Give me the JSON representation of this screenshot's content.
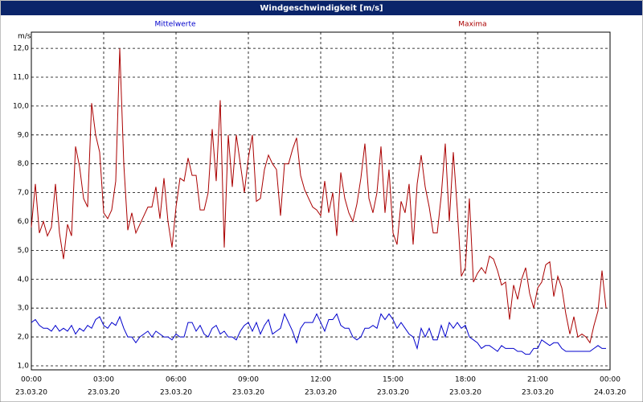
{
  "chart_data": {
    "type": "line",
    "title": "Windgeschwindigkeit [m/s]",
    "y_unit": "m/s",
    "x": [
      0,
      10,
      20,
      30,
      40,
      50,
      60,
      70,
      80,
      90,
      100,
      110,
      120,
      130,
      140,
      150,
      160,
      170,
      180,
      190,
      200,
      210,
      220,
      230,
      240,
      250,
      260,
      270,
      280,
      290,
      300,
      310,
      320,
      330,
      340,
      350,
      360,
      370,
      380,
      390,
      400,
      410,
      420,
      430,
      440,
      450,
      460,
      470,
      480,
      490,
      500,
      510,
      520,
      530,
      540,
      550,
      560,
      570,
      580,
      590,
      600,
      610,
      620,
      630,
      640,
      650,
      660,
      670,
      680,
      690,
      700,
      710,
      720,
      730,
      740,
      750,
      760,
      770,
      780,
      790,
      800,
      810,
      820,
      830,
      840,
      850,
      860,
      870,
      880,
      890,
      900,
      910,
      920,
      930,
      940,
      950,
      960,
      970,
      980,
      990,
      1000,
      1010,
      1020,
      1030,
      1040,
      1050,
      1060,
      1070,
      1080,
      1090,
      1100,
      1110,
      1120,
      1130,
      1140,
      1150,
      1160,
      1170,
      1180,
      1190,
      1200,
      1210,
      1220,
      1230,
      1240,
      1250,
      1260,
      1270,
      1280,
      1290,
      1300,
      1310,
      1320,
      1330,
      1340,
      1350,
      1360,
      1370,
      1380,
      1390,
      1400,
      1410,
      1420,
      1430
    ],
    "series": [
      {
        "name": "Mittelwerte",
        "color": "#0000cc",
        "values": [
          2.5,
          2.6,
          2.4,
          2.3,
          2.3,
          2.2,
          2.4,
          2.2,
          2.3,
          2.2,
          2.4,
          2.1,
          2.3,
          2.2,
          2.4,
          2.3,
          2.6,
          2.7,
          2.4,
          2.3,
          2.5,
          2.4,
          2.7,
          2.3,
          2.0,
          2.0,
          1.8,
          2.0,
          2.1,
          2.2,
          2.0,
          2.2,
          2.1,
          2.0,
          2.0,
          1.9,
          2.1,
          2.0,
          2.0,
          2.5,
          2.5,
          2.2,
          2.4,
          2.1,
          2.0,
          2.3,
          2.4,
          2.1,
          2.2,
          2.0,
          2.0,
          1.9,
          2.2,
          2.4,
          2.5,
          2.2,
          2.5,
          2.1,
          2.4,
          2.6,
          2.1,
          2.2,
          2.3,
          2.8,
          2.5,
          2.2,
          1.8,
          2.3,
          2.5,
          2.5,
          2.5,
          2.8,
          2.5,
          2.2,
          2.6,
          2.6,
          2.8,
          2.4,
          2.3,
          2.3,
          2.0,
          1.9,
          2.0,
          2.3,
          2.3,
          2.4,
          2.3,
          2.8,
          2.6,
          2.8,
          2.6,
          2.3,
          2.5,
          2.3,
          2.1,
          2.0,
          1.6,
          2.3,
          2.0,
          2.3,
          1.9,
          1.9,
          2.4,
          2.0,
          2.5,
          2.3,
          2.5,
          2.3,
          2.4,
          2.0,
          1.9,
          1.8,
          1.6,
          1.7,
          1.7,
          1.6,
          1.5,
          1.7,
          1.6,
          1.6,
          1.6,
          1.5,
          1.5,
          1.4,
          1.4,
          1.6,
          1.6,
          1.9,
          1.8,
          1.7,
          1.8,
          1.8,
          1.6,
          1.5,
          1.5,
          1.5,
          1.5,
          1.5,
          1.5,
          1.5,
          1.6,
          1.7,
          1.6,
          1.6
        ]
      },
      {
        "name": "Maxima",
        "color": "#aa0000",
        "values": [
          5.8,
          7.3,
          5.6,
          6.0,
          5.5,
          5.8,
          7.3,
          5.6,
          4.7,
          5.9,
          5.5,
          8.6,
          7.9,
          6.8,
          6.5,
          10.1,
          9.0,
          8.4,
          6.3,
          6.1,
          6.4,
          7.4,
          12.0,
          8.0,
          5.7,
          6.3,
          5.6,
          5.9,
          6.2,
          6.5,
          6.5,
          7.2,
          6.1,
          7.5,
          6.0,
          5.1,
          6.5,
          7.5,
          7.4,
          8.2,
          7.6,
          7.6,
          6.4,
          6.4,
          7.0,
          9.2,
          7.4,
          10.2,
          5.1,
          9.0,
          7.2,
          9.0,
          8.0,
          7.0,
          8.2,
          9.0,
          6.7,
          6.8,
          7.8,
          8.3,
          8.0,
          7.8,
          6.2,
          8.0,
          8.0,
          8.5,
          8.9,
          7.6,
          7.1,
          6.8,
          6.5,
          6.4,
          6.2,
          7.4,
          6.3,
          7.0,
          5.5,
          7.7,
          6.8,
          6.3,
          6.0,
          6.6,
          7.5,
          8.7,
          6.8,
          6.3,
          7.0,
          8.6,
          6.3,
          7.8,
          5.6,
          5.2,
          6.7,
          6.3,
          7.3,
          5.2,
          7.3,
          8.3,
          7.2,
          6.5,
          5.6,
          5.6,
          6.9,
          8.7,
          6.0,
          8.4,
          6.4,
          4.1,
          4.4,
          6.8,
          3.9,
          4.2,
          4.4,
          4.2,
          4.8,
          4.7,
          4.3,
          3.8,
          3.9,
          2.6,
          3.8,
          3.3,
          4.0,
          4.4,
          3.5,
          3.0,
          3.7,
          3.9,
          4.5,
          4.6,
          3.4,
          4.1,
          3.7,
          2.8,
          2.1,
          2.7,
          2.0,
          2.1,
          2.0,
          1.8,
          2.4,
          2.9,
          4.3,
          3.0
        ]
      }
    ],
    "xlim": [
      0,
      1440
    ],
    "xticks": [
      {
        "value": 0,
        "label": "00:00"
      },
      {
        "value": 180,
        "label": "03:00"
      },
      {
        "value": 360,
        "label": "06:00"
      },
      {
        "value": 540,
        "label": "09:00"
      },
      {
        "value": 720,
        "label": "12:00"
      },
      {
        "value": 900,
        "label": "15:00"
      },
      {
        "value": 1080,
        "label": "18:00"
      },
      {
        "value": 1260,
        "label": "21:00"
      },
      {
        "value": 1440,
        "label": "00:00"
      }
    ],
    "xtick_dates": [
      "23.03.20",
      "23.03.20",
      "23.03.20",
      "23.03.20",
      "23.03.20",
      "23.03.20",
      "23.03.20",
      "23.03.20",
      "24.03.20"
    ],
    "ylim": [
      0.86,
      12.56
    ],
    "yticks": [
      {
        "value": 1,
        "label": "1,0"
      },
      {
        "value": 2,
        "label": "2,0"
      },
      {
        "value": 3,
        "label": "3,0"
      },
      {
        "value": 4,
        "label": "4,0"
      },
      {
        "value": 5,
        "label": "5,0"
      },
      {
        "value": 6,
        "label": "6,0"
      },
      {
        "value": 7,
        "label": "7,0"
      },
      {
        "value": 8,
        "label": "8,0"
      },
      {
        "value": 9,
        "label": "9,0"
      },
      {
        "value": 10,
        "label": "10,0"
      },
      {
        "value": 11,
        "label": "11,0"
      },
      {
        "value": 12,
        "label": "12,0"
      }
    ],
    "grid": true
  }
}
